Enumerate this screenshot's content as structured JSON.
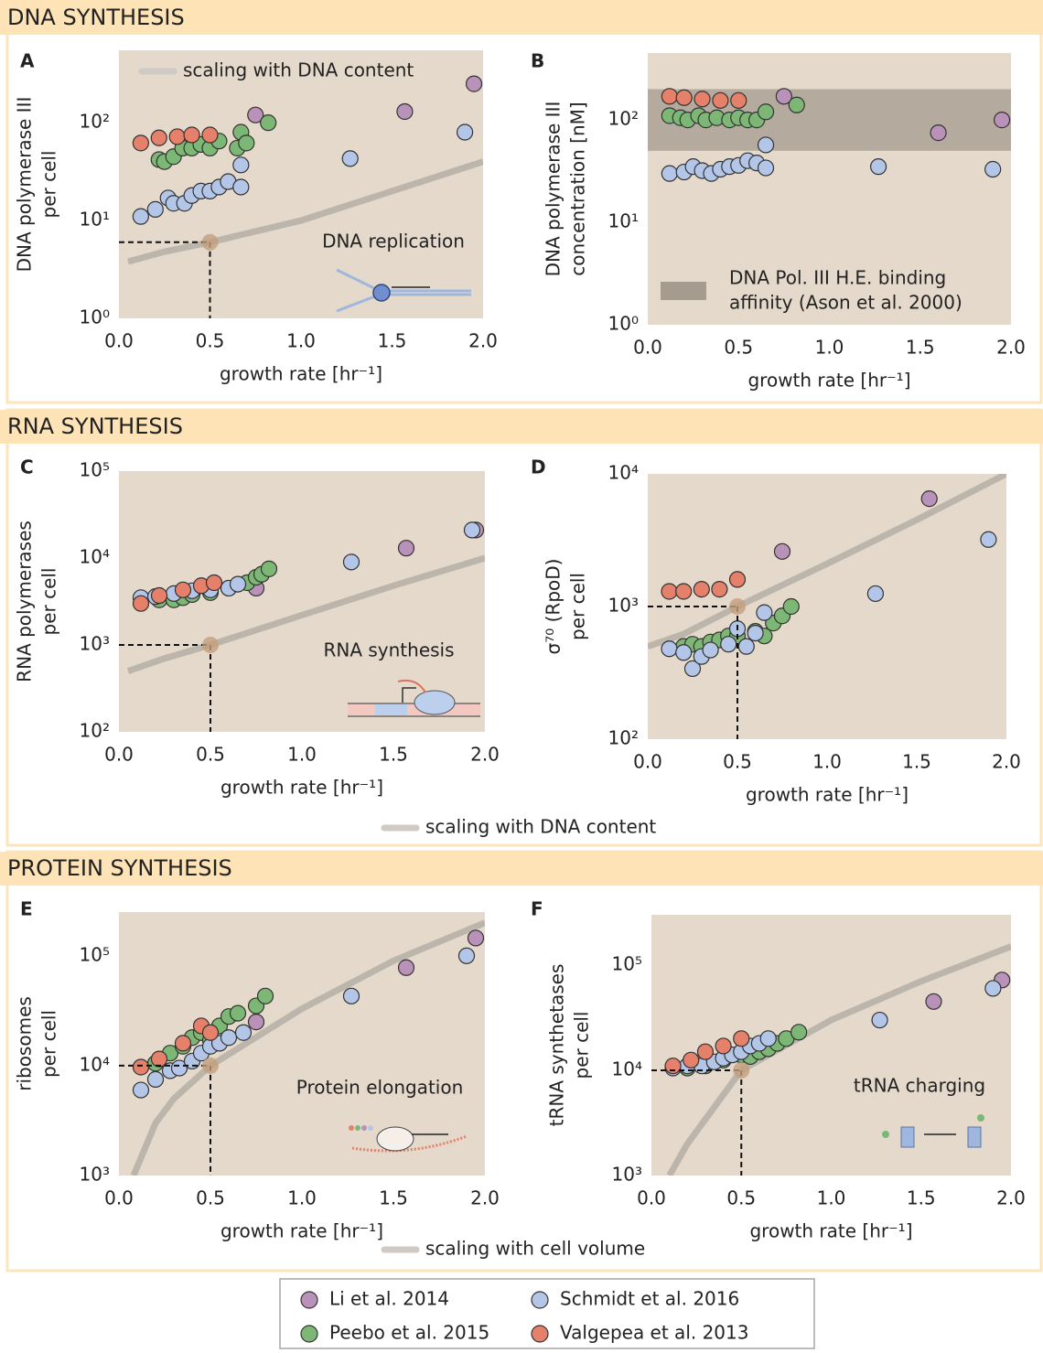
{
  "sections": [
    "DNA SYNTHESIS",
    "RNA SYNTHESIS",
    "PROTEIN SYNTHESIS"
  ],
  "legend": [
    {
      "name": "Li et al. 2014",
      "color": "#b892b8"
    },
    {
      "name": "Peebo et al. 2015",
      "color": "#7db775"
    },
    {
      "name": "Schmidt et al. 2016",
      "color": "#b3c6e8"
    },
    {
      "name": "Valgepea et al. 2013",
      "color": "#e5806b"
    }
  ],
  "chart_data": [
    {
      "type": "scatter",
      "panel": "A",
      "xlabel": "growth rate [hr⁻¹]",
      "ylabel": [
        "DNA polymerase III",
        "per cell"
      ],
      "log_y": true,
      "xlim": [
        0,
        2
      ],
      "ylim": [
        1,
        550
      ],
      "xticks": [
        {
          "value": 0,
          "label": "0.0"
        },
        0.5,
        {
          "value": 1,
          "label": "1.0"
        },
        1.5,
        {
          "value": 2,
          "label": "2.0"
        }
      ],
      "yticks": [
        {
          "value": 1,
          "label": "10⁰"
        },
        {
          "value": 10,
          "label": "10¹"
        },
        {
          "value": 100,
          "label": "10²"
        }
      ],
      "series": [
        {
          "color": "#b892b8",
          "x": [
            0.75,
            1.57,
            1.95
          ],
          "values": [
            120,
            130,
            250
          ]
        },
        {
          "color": "#7db775",
          "x": [
            0.22,
            0.25,
            0.3,
            0.35,
            0.4,
            0.45,
            0.5,
            0.55,
            0.65,
            0.67,
            0.7,
            0.82
          ],
          "values": [
            42,
            40,
            45,
            55,
            55,
            60,
            55,
            65,
            55,
            80,
            62,
            100
          ]
        },
        {
          "color": "#b3c6e8",
          "x": [
            0.12,
            0.2,
            0.27,
            0.3,
            0.36,
            0.4,
            0.45,
            0.5,
            0.55,
            0.6,
            0.67,
            0.67,
            1.27,
            1.9
          ],
          "values": [
            11,
            13,
            17,
            15,
            15,
            18,
            20,
            20,
            22,
            25,
            22,
            37,
            43,
            80
          ]
        },
        {
          "color": "#e5806b",
          "x": [
            0.12,
            0.22,
            0.32,
            0.4,
            0.5
          ],
          "values": [
            62,
            70,
            72,
            75,
            75
          ]
        }
      ],
      "trend": {
        "name": "scaling with DNA content",
        "x": [
          0.05,
          0.25,
          0.5,
          1.0,
          1.5,
          2.0
        ],
        "values": [
          3.8,
          4.8,
          6,
          10,
          20,
          40
        ]
      },
      "reference": {
        "x": 0.5,
        "value": 6
      },
      "annotation": "DNA replication"
    },
    {
      "type": "scatter",
      "panel": "B",
      "xlabel": "growth rate [hr⁻¹]",
      "ylabel": [
        "DNA polymerase III",
        "concentration [nM]"
      ],
      "log_y": true,
      "xlim": [
        0,
        2
      ],
      "ylim": [
        1,
        450
      ],
      "xticks": [
        {
          "value": 0,
          "label": "0.0"
        },
        0.5,
        {
          "value": 1,
          "label": "1.0"
        },
        1.5,
        {
          "value": 2,
          "label": "2.0"
        }
      ],
      "yticks": [
        {
          "value": 1,
          "label": "10⁰"
        },
        {
          "value": 10,
          "label": "10¹"
        },
        {
          "value": 100,
          "label": "10²"
        }
      ],
      "series": [
        {
          "color": "#b892b8",
          "x": [
            0.75,
            1.6,
            1.95
          ],
          "values": [
            170,
            75,
            100
          ]
        },
        {
          "color": "#7db775",
          "x": [
            0.12,
            0.18,
            0.22,
            0.28,
            0.32,
            0.38,
            0.45,
            0.5,
            0.55,
            0.6,
            0.65,
            0.82
          ],
          "values": [
            110,
            105,
            100,
            110,
            100,
            105,
            100,
            105,
            100,
            100,
            120,
            140
          ]
        },
        {
          "color": "#b3c6e8",
          "x": [
            0.12,
            0.2,
            0.25,
            0.3,
            0.35,
            0.4,
            0.45,
            0.5,
            0.55,
            0.6,
            0.65,
            0.65,
            1.27,
            1.9
          ],
          "values": [
            30,
            31,
            35,
            32,
            30,
            33,
            35,
            36,
            40,
            38,
            34,
            57,
            35,
            33
          ]
        },
        {
          "color": "#e5806b",
          "x": [
            0.12,
            0.2,
            0.3,
            0.4,
            0.5
          ],
          "values": [
            170,
            165,
            160,
            155,
            155
          ]
        }
      ],
      "band": {
        "name": [
          "DNA Pol. III H.E. binding",
          "affinity (Ason et al. 2000)"
        ],
        "ylim": [
          50,
          200
        ],
        "color": "#958c80"
      }
    },
    {
      "type": "scatter",
      "panel": "C",
      "xlabel": "growth rate [hr⁻¹]",
      "ylabel": [
        "RNA polymerases",
        "per cell"
      ],
      "log_y": true,
      "xlim": [
        0,
        2
      ],
      "ylim": [
        100,
        100000
      ],
      "xticks": [
        {
          "value": 0,
          "label": "0.0"
        },
        0.5,
        {
          "value": 1,
          "label": "1.0"
        },
        1.5,
        {
          "value": 2,
          "label": "2.0"
        }
      ],
      "yticks": [
        {
          "value": 100,
          "label": "10²"
        },
        {
          "value": 1000,
          "label": "10³"
        },
        {
          "value": 10000,
          "label": "10⁴"
        },
        {
          "value": 100000,
          "label": "10⁵"
        }
      ],
      "series": [
        {
          "color": "#b892b8",
          "x": [
            0.75,
            1.57,
            1.95
          ],
          "values": [
            4500,
            13000,
            21000
          ]
        },
        {
          "color": "#7db775",
          "x": [
            0.22,
            0.3,
            0.35,
            0.4,
            0.5,
            0.6,
            0.7,
            0.75,
            0.78,
            0.82
          ],
          "values": [
            3300,
            3300,
            3500,
            3800,
            4000,
            4500,
            5200,
            6000,
            6500,
            7500
          ]
        },
        {
          "color": "#b3c6e8",
          "x": [
            0.12,
            0.2,
            0.3,
            0.4,
            0.5,
            0.6,
            0.65,
            1.27,
            1.93
          ],
          "values": [
            3500,
            3600,
            3900,
            4200,
            4300,
            4500,
            5000,
            9000,
            21000
          ]
        },
        {
          "color": "#e5806b",
          "x": [
            0.12,
            0.22,
            0.35,
            0.45,
            0.52
          ],
          "values": [
            3000,
            3700,
            4300,
            4800,
            5200
          ]
        }
      ],
      "trend": {
        "name": "scaling with DNA content",
        "x": [
          0.05,
          0.25,
          0.5,
          1.0,
          1.5,
          2.0
        ],
        "values": [
          500,
          700,
          1000,
          2200,
          4800,
          10000
        ]
      },
      "reference": {
        "x": 0.5,
        "value": 1000
      },
      "annotation": "RNA synthesis"
    },
    {
      "type": "scatter",
      "panel": "D",
      "xlabel": "growth rate [hr⁻¹]",
      "ylabel": [
        "σ⁷⁰ (RpoD)",
        "per cell"
      ],
      "log_y": true,
      "xlim": [
        0,
        2
      ],
      "ylim": [
        100,
        10000
      ],
      "xticks": [
        {
          "value": 0,
          "label": "0.0"
        },
        0.5,
        {
          "value": 1,
          "label": "1.0"
        },
        1.5,
        {
          "value": 2,
          "label": "2.0"
        }
      ],
      "yticks": [
        {
          "value": 100,
          "label": "10²"
        },
        {
          "value": 1000,
          "label": "10³"
        },
        {
          "value": 10000,
          "label": "10⁴"
        }
      ],
      "series": [
        {
          "color": "#b892b8",
          "x": [
            0.75,
            1.57
          ],
          "values": [
            2600,
            6500
          ]
        },
        {
          "color": "#7db775",
          "x": [
            0.2,
            0.25,
            0.3,
            0.35,
            0.4,
            0.45,
            0.5,
            0.6,
            0.65,
            0.7,
            0.75,
            0.8
          ],
          "values": [
            500,
            520,
            500,
            540,
            560,
            600,
            600,
            650,
            600,
            750,
            850,
            1000
          ]
        },
        {
          "color": "#b3c6e8",
          "x": [
            0.12,
            0.2,
            0.25,
            0.3,
            0.35,
            0.45,
            0.5,
            0.55,
            0.6,
            0.65,
            1.27,
            1.9
          ],
          "values": [
            480,
            450,
            340,
            420,
            470,
            520,
            680,
            500,
            630,
            900,
            1250,
            3200
          ]
        },
        {
          "color": "#e5806b",
          "x": [
            0.12,
            0.2,
            0.3,
            0.4,
            0.5
          ],
          "values": [
            1300,
            1300,
            1350,
            1350,
            1600
          ]
        }
      ],
      "trend": {
        "x": [
          0,
          0.2,
          0.5,
          1.0,
          1.5,
          2.0
        ],
        "values": [
          500,
          620,
          1000,
          2100,
          4500,
          10000
        ]
      },
      "reference": {
        "x": 0.5,
        "value": 1000
      }
    },
    {
      "type": "scatter",
      "panel": "E",
      "xlabel": "growth rate [hr⁻¹]",
      "ylabel": [
        "ribosomes",
        "per cell"
      ],
      "log_y": true,
      "xlim": [
        0,
        2
      ],
      "ylim": [
        1000,
        250000
      ],
      "xticks": [
        {
          "value": 0,
          "label": "0.0"
        },
        0.5,
        {
          "value": 1,
          "label": "1.0"
        },
        1.5,
        {
          "value": 2,
          "label": "2.0"
        }
      ],
      "yticks": [
        {
          "value": 1000,
          "label": "10³"
        },
        {
          "value": 10000,
          "label": "10⁴"
        },
        {
          "value": 100000,
          "label": "10⁵"
        }
      ],
      "series": [
        {
          "color": "#b892b8",
          "x": [
            0.75,
            1.57,
            1.95
          ],
          "values": [
            25000,
            78000,
            145000
          ]
        },
        {
          "color": "#7db775",
          "x": [
            0.2,
            0.28,
            0.35,
            0.4,
            0.45,
            0.5,
            0.55,
            0.6,
            0.65,
            0.75,
            0.8
          ],
          "values": [
            10500,
            13000,
            15000,
            18000,
            20000,
            17000,
            23000,
            28000,
            30000,
            35000,
            43000
          ]
        },
        {
          "color": "#b3c6e8",
          "x": [
            0.12,
            0.2,
            0.28,
            0.33,
            0.4,
            0.45,
            0.5,
            0.55,
            0.6,
            0.68,
            1.27,
            1.9
          ],
          "values": [
            6000,
            7500,
            9000,
            9500,
            11000,
            13000,
            15000,
            16000,
            18000,
            20000,
            43000,
            100000
          ]
        },
        {
          "color": "#e5806b",
          "x": [
            0.12,
            0.22,
            0.35,
            0.45,
            0.5
          ],
          "values": [
            9700,
            11500,
            16000,
            23000,
            20000
          ]
        }
      ],
      "trend": {
        "name": "scaling with cell volume",
        "x": [
          0.08,
          0.2,
          0.3,
          0.5,
          1.0,
          1.5,
          2.0
        ],
        "values": [
          1000,
          3000,
          5000,
          10000,
          33000,
          90000,
          200000
        ]
      },
      "reference": {
        "x": 0.5,
        "value": 10000
      },
      "annotation": "Protein elongation"
    },
    {
      "type": "scatter",
      "panel": "F",
      "xlabel": "growth rate [hr⁻¹]",
      "ylabel": [
        "tRNA synthetases",
        "per cell"
      ],
      "log_y": true,
      "xlim": [
        0,
        2
      ],
      "ylim": [
        1000,
        300000
      ],
      "xticks": [
        {
          "value": 0,
          "label": "0.0"
        },
        0.5,
        {
          "value": 1,
          "label": "1.0"
        },
        1.5,
        {
          "value": 2,
          "label": "2.0"
        }
      ],
      "yticks": [
        {
          "value": 1000,
          "label": "10³"
        },
        {
          "value": 10000,
          "label": "10⁴"
        },
        {
          "value": 100000,
          "label": "10⁵"
        }
      ],
      "series": [
        {
          "color": "#b892b8",
          "x": [
            1.57,
            1.95
          ],
          "values": [
            45000,
            72000
          ]
        },
        {
          "color": "#7db775",
          "x": [
            0.2,
            0.3,
            0.4,
            0.5,
            0.55,
            0.6,
            0.65,
            0.7,
            0.75,
            0.82
          ],
          "values": [
            10500,
            11000,
            12500,
            14000,
            13500,
            15000,
            16000,
            18000,
            20000,
            23000
          ]
        },
        {
          "color": "#b3c6e8",
          "x": [
            0.12,
            0.2,
            0.28,
            0.35,
            0.4,
            0.45,
            0.5,
            0.55,
            0.6,
            0.65,
            1.27,
            1.9
          ],
          "values": [
            10500,
            11000,
            11000,
            12000,
            13000,
            14000,
            15000,
            17000,
            18000,
            20000,
            30000,
            60000
          ]
        },
        {
          "color": "#e5806b",
          "x": [
            0.12,
            0.22,
            0.3,
            0.4,
            0.5
          ],
          "values": [
            11000,
            12500,
            15000,
            17000,
            20000
          ]
        }
      ],
      "trend": {
        "x": [
          0.1,
          0.2,
          0.5,
          1.0,
          1.5,
          2.0
        ],
        "values": [
          1000,
          2000,
          10000,
          30000,
          70000,
          150000
        ]
      },
      "reference": {
        "x": 0.5,
        "value": 10000
      },
      "annotation": "tRNA charging"
    }
  ]
}
